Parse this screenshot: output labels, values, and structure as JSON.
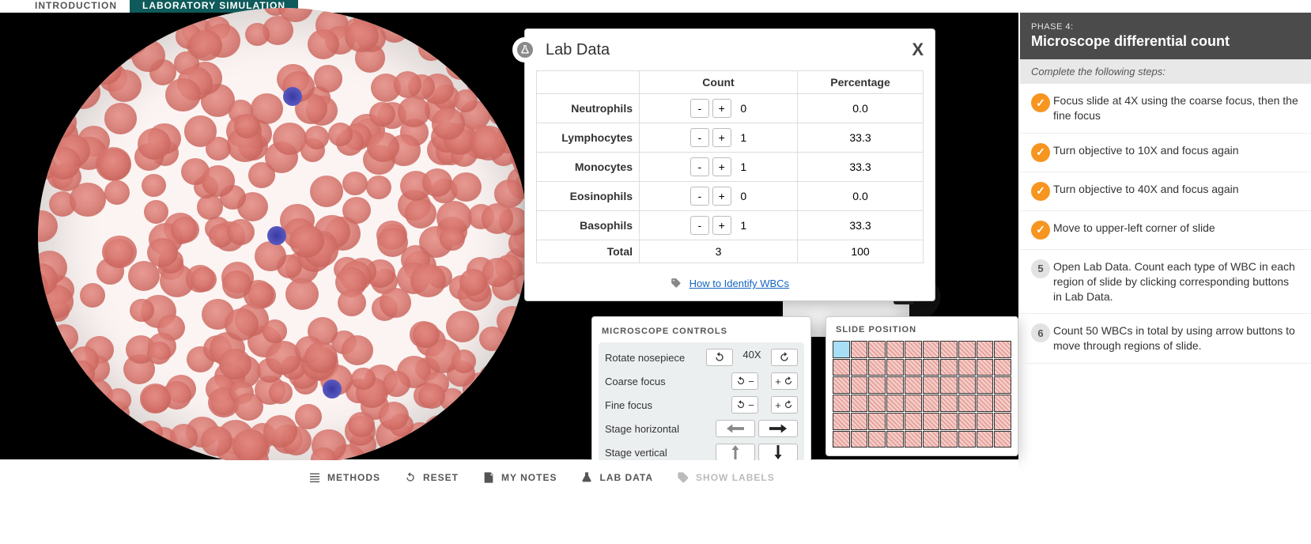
{
  "tabs": {
    "intro": "INTRODUCTION",
    "sim": "LABORATORY SIMULATION"
  },
  "lab_data": {
    "title": "Lab Data",
    "columns": {
      "count": "Count",
      "percentage": "Percentage"
    },
    "rows": [
      {
        "label": "Neutrophils",
        "count": "0",
        "pct": "0.0"
      },
      {
        "label": "Lymphocytes",
        "count": "1",
        "pct": "33.3"
      },
      {
        "label": "Monocytes",
        "count": "1",
        "pct": "33.3"
      },
      {
        "label": "Eosinophils",
        "count": "0",
        "pct": "0.0"
      },
      {
        "label": "Basophils",
        "count": "1",
        "pct": "33.3"
      }
    ],
    "total_label": "Total",
    "total_count": "3",
    "total_pct": "100",
    "help_link": "How to Identify WBCs",
    "minus": "-",
    "plus": "+"
  },
  "microscope_controls": {
    "title": "MICROSCOPE CONTROLS",
    "rows": {
      "nosepiece": "Rotate nosepiece",
      "coarse": "Coarse focus",
      "fine": "Fine focus",
      "stageh": "Stage horizontal",
      "stagev": "Stage vertical"
    },
    "magnification": "40X",
    "symbols": {
      "minus": "−",
      "plus": "+"
    }
  },
  "slide_position": {
    "title": "SLIDE POSITION",
    "cols": 10,
    "rows": 6,
    "current_index": 0
  },
  "bottom_bar": {
    "methods": "METHODS",
    "reset": "RESET",
    "notes": "MY NOTES",
    "labdata": "LAB DATA",
    "labels": "SHOW LABELS"
  },
  "side_panel": {
    "phase": "PHASE 4:",
    "title": "Microscope differential count",
    "subtitle": "Complete the following steps:",
    "steps": [
      {
        "done": true,
        "text": "Focus slide at 4X using the coarse focus, then the fine focus"
      },
      {
        "done": true,
        "text": "Turn objective to 10X and focus again"
      },
      {
        "done": true,
        "text": "Turn objective to 40X and focus again"
      },
      {
        "done": true,
        "text": "Move to upper-left corner of slide"
      },
      {
        "done": false,
        "num": "5",
        "text": "Open Lab Data. Count each type of WBC in each region of slide by clicking corresponding buttons in Lab Data."
      },
      {
        "done": false,
        "num": "6",
        "text": "Count 50 WBCs in total by using arrow buttons to move through regions of slide."
      }
    ]
  },
  "colors": {
    "accent_teal": "#0f5a5a",
    "check_orange": "#f79521",
    "link_blue": "#1565c0",
    "rbc": "#d97870",
    "wbc": "#4848b5"
  }
}
